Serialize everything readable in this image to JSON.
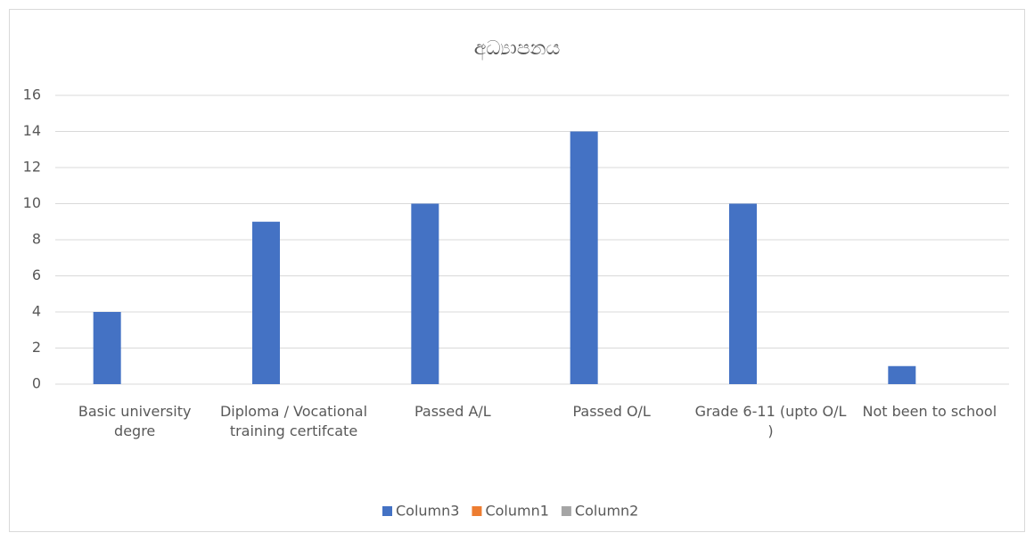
{
  "chart_data": {
    "type": "bar",
    "title": "අධ්‍යාපනය",
    "categories": [
      "Basic university degre",
      "Diploma / Vocational training certifcate",
      "Passed A/L",
      "Passed O/L",
      "Grade 6-11 (upto O/L )",
      "Not been to school"
    ],
    "series": [
      {
        "name": "Column3",
        "color": "#4472c4",
        "values": [
          4,
          9,
          10,
          14,
          10,
          1
        ]
      },
      {
        "name": "Column1",
        "color": "#ed7d31",
        "values": [
          null,
          null,
          null,
          null,
          null,
          null
        ]
      },
      {
        "name": "Column2",
        "color": "#a5a5a5",
        "values": [
          null,
          null,
          null,
          null,
          null,
          null
        ]
      }
    ],
    "ylim": [
      0,
      16
    ],
    "yticks": [
      0,
      2,
      4,
      6,
      8,
      10,
      12,
      14,
      16
    ],
    "grid": true,
    "legend": "bottom"
  }
}
